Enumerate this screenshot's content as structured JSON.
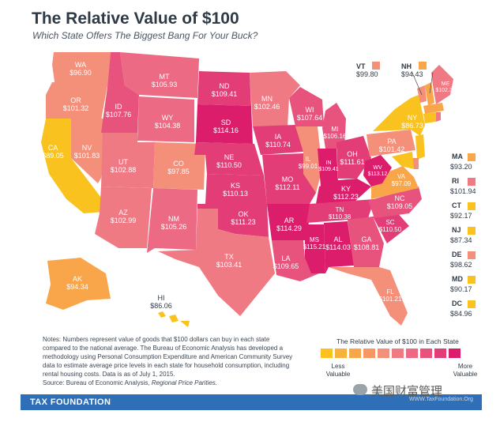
{
  "header": {
    "title": "The Relative Value of $100",
    "subtitle": "Which State Offers The Biggest Bang For Your Buck?"
  },
  "colors": {
    "c1": "#f9c21f",
    "c2": "#f9a64a",
    "c3": "#f48f7a",
    "c4": "#f07a84",
    "c5": "#ec6a84",
    "c6": "#e8537e",
    "c7": "#e23d76",
    "c8": "#dc1d6c",
    "footer": "#2f6fb7"
  },
  "states": {
    "WA": {
      "abbr": "WA",
      "value": "$96.90"
    },
    "OR": {
      "abbr": "OR",
      "value": "$101.32"
    },
    "CA": {
      "abbr": "CA",
      "value": "$89.05"
    },
    "NV": {
      "abbr": "NV",
      "value": "$101.83"
    },
    "ID": {
      "abbr": "ID",
      "value": "$107.76"
    },
    "MT": {
      "abbr": "MT",
      "value": "$105.93"
    },
    "WY": {
      "abbr": "WY",
      "value": "$104.38"
    },
    "UT": {
      "abbr": "UT",
      "value": "$102.88"
    },
    "AZ": {
      "abbr": "AZ",
      "value": "$102.99"
    },
    "CO": {
      "abbr": "CO",
      "value": "$97.85"
    },
    "NM": {
      "abbr": "NM",
      "value": "$105.26"
    },
    "ND": {
      "abbr": "ND",
      "value": "$109.41"
    },
    "SD": {
      "abbr": "SD",
      "value": "$114.16"
    },
    "NE": {
      "abbr": "NE",
      "value": "$110.50"
    },
    "KS": {
      "abbr": "KS",
      "value": "$110.13"
    },
    "OK": {
      "abbr": "OK",
      "value": "$111.23"
    },
    "TX": {
      "abbr": "TX",
      "value": "$103.41"
    },
    "MN": {
      "abbr": "MN",
      "value": "$102.46"
    },
    "IA": {
      "abbr": "IA",
      "value": "$110.74"
    },
    "MO": {
      "abbr": "MO",
      "value": "$112.11"
    },
    "AR": {
      "abbr": "AR",
      "value": "$114.29"
    },
    "LA": {
      "abbr": "LA",
      "value": "$109.65"
    },
    "WI": {
      "abbr": "WI",
      "value": "$107.64"
    },
    "IL": {
      "abbr": "IL",
      "value": "$99.01"
    },
    "MS": {
      "abbr": "MS",
      "value": "$115.21"
    },
    "MI": {
      "abbr": "MI",
      "value": "$106.16"
    },
    "IN": {
      "abbr": "IN",
      "value": "$109.41"
    },
    "OH": {
      "abbr": "OH",
      "value": "$111.61"
    },
    "KY": {
      "abbr": "KY",
      "value": "$112.23"
    },
    "TN": {
      "abbr": "TN",
      "value": "$110.38"
    },
    "AL": {
      "abbr": "AL",
      "value": "$114.03"
    },
    "GA": {
      "abbr": "GA",
      "value": "$108.81"
    },
    "FL": {
      "abbr": "FL",
      "value": "$101.21"
    },
    "SC": {
      "abbr": "SC",
      "value": "$110.50"
    },
    "NC": {
      "abbr": "NC",
      "value": "$109.05"
    },
    "VA": {
      "abbr": "VA",
      "value": "$97.09"
    },
    "WV": {
      "abbr": "WV",
      "value": "$113.12"
    },
    "PA": {
      "abbr": "PA",
      "value": "$101.42"
    },
    "NY": {
      "abbr": "NY",
      "value": "$86.73"
    },
    "ME": {
      "abbr": "ME",
      "value": "$102.35"
    },
    "AK": {
      "abbr": "AK",
      "value": "$94.34"
    },
    "HI": {
      "abbr": "HI",
      "value": "$86.06"
    }
  },
  "callouts": {
    "VT": {
      "abbr": "VT",
      "value": "$99.80"
    },
    "NH": {
      "abbr": "NH",
      "value": "$94.43"
    }
  },
  "northeast_list": [
    {
      "abbr": "MA",
      "value": "$93.20"
    },
    {
      "abbr": "RI",
      "value": "$101.94"
    },
    {
      "abbr": "CT",
      "value": "$92.17"
    },
    {
      "abbr": "NJ",
      "value": "$87.34"
    },
    {
      "abbr": "DE",
      "value": "$98.62"
    },
    {
      "abbr": "MD",
      "value": "$90.17"
    },
    {
      "abbr": "DC",
      "value": "$84.96"
    }
  ],
  "notes": {
    "text": "Notes: Numbers represent value of goods that $100 dollars can buy in each state compared to the national average. The Bureau of Economic Analysis has developed a methodology using Personal Consumption Expenditure and American Community Survey data to estimate average price levels in each state for household consumption, including rental housing costs. Data is as of July 1, 2015.",
    "source_prefix": "Source: Bureau of Economic Analysis, ",
    "source_title": "Regional Price Parities."
  },
  "legend": {
    "title": "The Relative Value of $100 in Each State",
    "low_label": "Less Valuable",
    "high_label": "More Valuable"
  },
  "footer": {
    "label": "TAX FOUNDATION"
  },
  "watermark": {
    "text": "美国财富管理",
    "small": "WWW.TaxFoundation.Org"
  }
}
